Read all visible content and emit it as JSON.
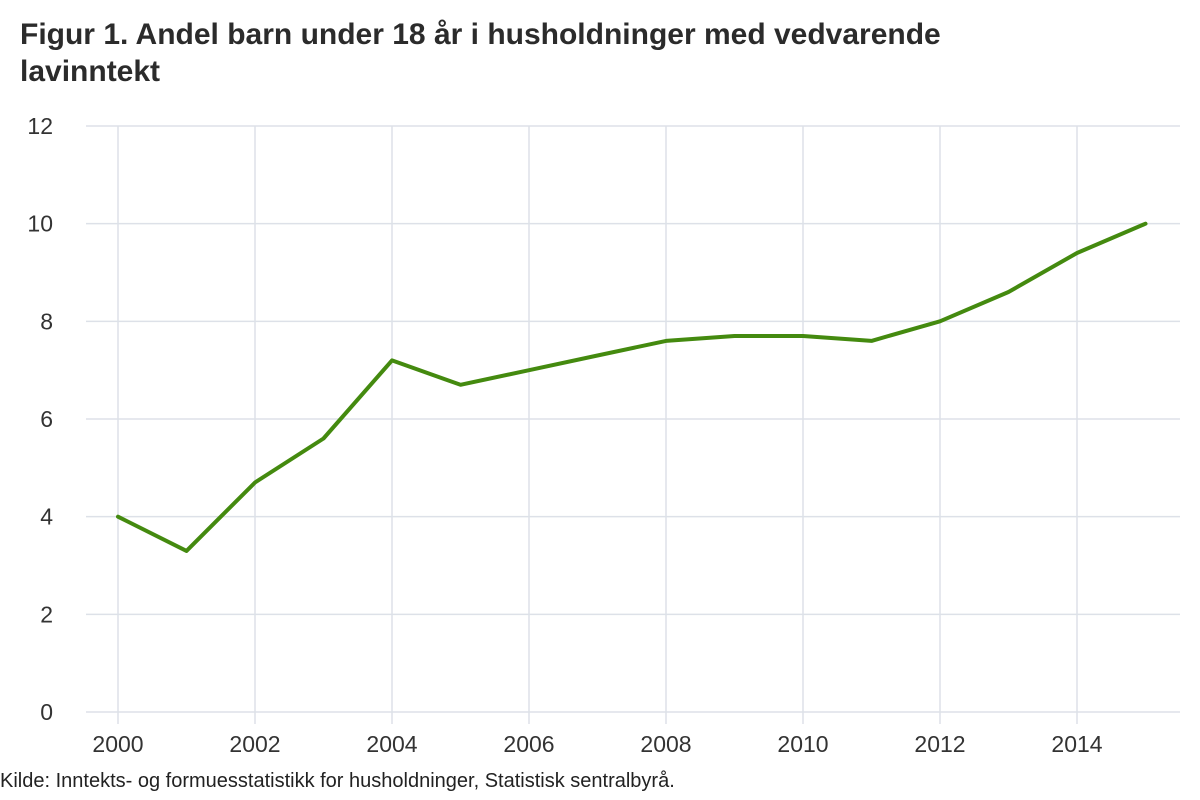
{
  "chart_data": {
    "type": "line",
    "title": "Figur 1. Andel barn under 18 år i husholdninger med vedvarende lavinntekt",
    "xlabel": "",
    "ylabel": "",
    "x": [
      2000,
      2001,
      2002,
      2003,
      2004,
      2005,
      2006,
      2007,
      2008,
      2009,
      2010,
      2011,
      2012,
      2013,
      2014,
      2015
    ],
    "series": [
      {
        "values": [
          4.0,
          3.3,
          4.7,
          5.6,
          7.2,
          6.7,
          7.0,
          7.3,
          7.6,
          7.7,
          7.7,
          7.6,
          8.0,
          8.6,
          9.4,
          10.0
        ],
        "color": "#448a0f"
      }
    ],
    "xlim": [
      2000,
      2015
    ],
    "ylim": [
      0,
      12
    ],
    "xticks": [
      2000,
      2002,
      2004,
      2006,
      2008,
      2010,
      2012,
      2014
    ],
    "yticks": [
      0,
      2,
      4,
      6,
      8,
      10,
      12
    ],
    "grid": true,
    "gridColor": "#dde1e8",
    "legend": "none"
  },
  "source": "Kilde: Inntekts- og formuesstatistikk for husholdninger, Statistisk sentralbyrå."
}
